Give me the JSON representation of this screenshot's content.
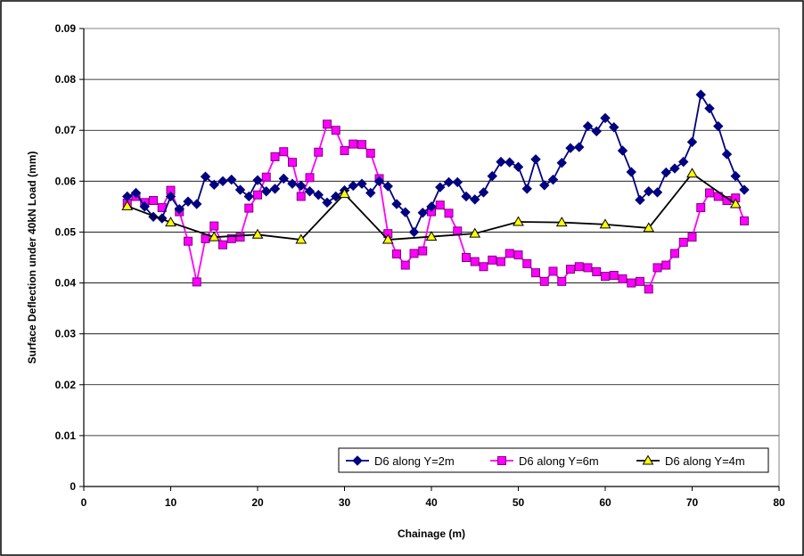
{
  "chart_data": {
    "type": "line",
    "xlabel": "Chainage (m)",
    "ylabel": "Surface Deflection under 40kN Load (mm)",
    "xlim": [
      0,
      80
    ],
    "ylim": [
      0,
      0.09
    ],
    "x_ticks": [
      "0",
      "10",
      "20",
      "30",
      "40",
      "50",
      "60",
      "70",
      "80"
    ],
    "y_ticks": [
      "0",
      "0.01",
      "0.02",
      "0.03",
      "0.04",
      "0.05",
      "0.06",
      "0.07",
      "0.08",
      "0.09"
    ],
    "grid": "horizontal",
    "legend_position": "bottom-right",
    "series": [
      {
        "name": "D6 along Y=2m",
        "color": "#000080",
        "marker": "diamond",
        "x": [
          5,
          6,
          7,
          8,
          9,
          10,
          11,
          12,
          13,
          14,
          15,
          16,
          17,
          18,
          19,
          20,
          21,
          22,
          23,
          24,
          25,
          26,
          27,
          28,
          29,
          30,
          31,
          32,
          33,
          34,
          35,
          36,
          37,
          38,
          39,
          40,
          41,
          42,
          43,
          44,
          45,
          46,
          47,
          48,
          49,
          50,
          51,
          52,
          53,
          54,
          55,
          56,
          57,
          58,
          59,
          60,
          61,
          62,
          63,
          64,
          65,
          66,
          67,
          68,
          69,
          70,
          71,
          72,
          73,
          74,
          75,
          76
        ],
        "y": [
          0.057,
          0.0577,
          0.055,
          0.053,
          0.0527,
          0.057,
          0.0545,
          0.056,
          0.0555,
          0.0609,
          0.0593,
          0.06,
          0.0603,
          0.0583,
          0.057,
          0.0602,
          0.058,
          0.0585,
          0.0605,
          0.0595,
          0.0591,
          0.058,
          0.0573,
          0.0558,
          0.057,
          0.0582,
          0.0591,
          0.0595,
          0.0577,
          0.06,
          0.059,
          0.0555,
          0.0539,
          0.05,
          0.0538,
          0.055,
          0.0588,
          0.0598,
          0.0598,
          0.057,
          0.0564,
          0.0578,
          0.061,
          0.0638,
          0.0637,
          0.0628,
          0.0585,
          0.0643,
          0.0592,
          0.0603,
          0.0636,
          0.0665,
          0.0667,
          0.0708,
          0.0698,
          0.0724,
          0.0706,
          0.066,
          0.0618,
          0.0563,
          0.058,
          0.0578,
          0.0617,
          0.0625,
          0.0638,
          0.0677,
          0.077,
          0.0743,
          0.0708,
          0.0653,
          0.061,
          0.0583
        ]
      },
      {
        "name": "D6 along Y=6m",
        "color": "#FF00FF",
        "marker": "square",
        "x": [
          5,
          6,
          7,
          8,
          9,
          10,
          11,
          12,
          13,
          14,
          15,
          16,
          17,
          18,
          19,
          20,
          21,
          22,
          23,
          24,
          25,
          26,
          27,
          28,
          29,
          30,
          31,
          32,
          33,
          34,
          35,
          36,
          37,
          38,
          39,
          40,
          41,
          42,
          43,
          44,
          45,
          46,
          47,
          48,
          49,
          50,
          51,
          52,
          53,
          54,
          55,
          56,
          57,
          58,
          59,
          60,
          61,
          62,
          63,
          64,
          65,
          66,
          67,
          68,
          69,
          70,
          71,
          72,
          73,
          74,
          75,
          76
        ],
        "y": [
          0.0557,
          0.057,
          0.0558,
          0.0562,
          0.0548,
          0.0582,
          0.054,
          0.0482,
          0.0402,
          0.0487,
          0.0512,
          0.0475,
          0.0487,
          0.049,
          0.0547,
          0.0573,
          0.0608,
          0.0648,
          0.0658,
          0.0637,
          0.057,
          0.0607,
          0.0657,
          0.0712,
          0.07,
          0.066,
          0.0673,
          0.0672,
          0.0655,
          0.0605,
          0.0497,
          0.0457,
          0.0435,
          0.0458,
          0.0463,
          0.054,
          0.0553,
          0.0537,
          0.0502,
          0.045,
          0.0442,
          0.0432,
          0.0445,
          0.0442,
          0.0458,
          0.0455,
          0.0438,
          0.042,
          0.0403,
          0.0423,
          0.0403,
          0.0427,
          0.0432,
          0.043,
          0.0422,
          0.0413,
          0.0415,
          0.0408,
          0.04,
          0.0403,
          0.0388,
          0.043,
          0.0435,
          0.0458,
          0.048,
          0.049,
          0.0548,
          0.0577,
          0.057,
          0.0562,
          0.0567,
          0.0522
        ]
      },
      {
        "name": "D6 along Y=4m",
        "color": "#000000",
        "marker": "triangle",
        "marker_fill": "#FFFF00",
        "x": [
          5,
          10,
          15,
          20,
          25,
          30,
          35,
          40,
          45,
          50,
          55,
          60,
          65,
          70,
          75
        ],
        "y": [
          0.0551,
          0.0519,
          0.049,
          0.0495,
          0.0485,
          0.0575,
          0.0485,
          0.0491,
          0.0497,
          0.052,
          0.0519,
          0.0515,
          0.0508,
          0.0615,
          0.0555
        ]
      }
    ]
  }
}
